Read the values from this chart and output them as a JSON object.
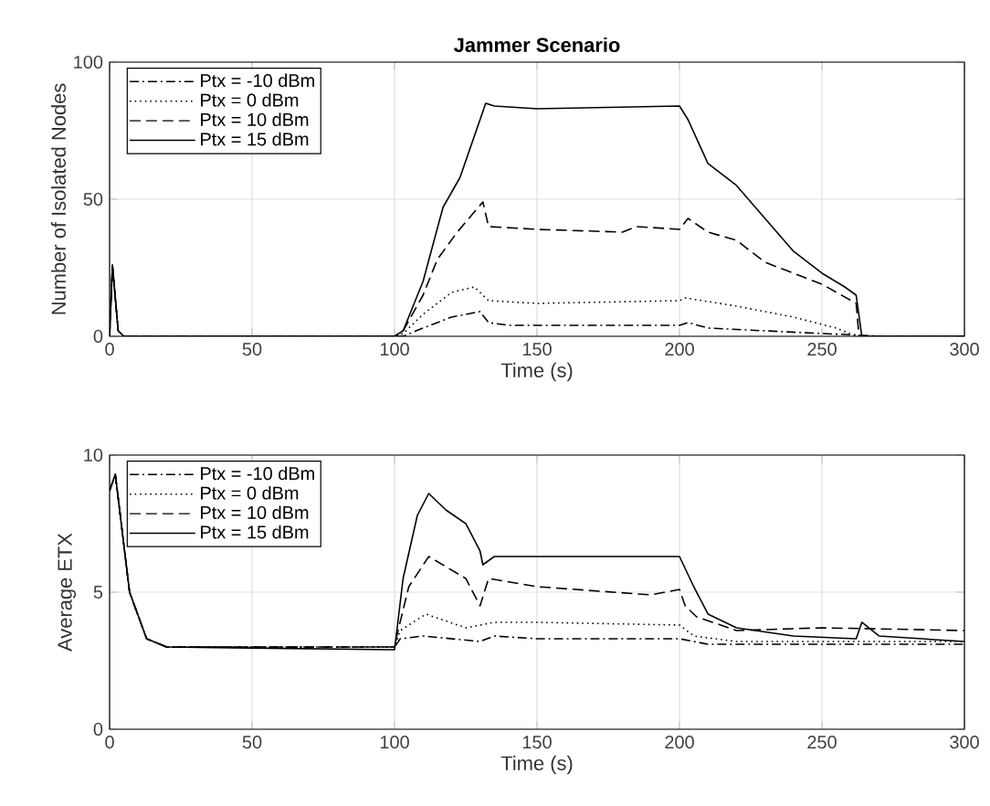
{
  "chart_data": [
    {
      "type": "line",
      "title": "Jammer Scenario",
      "xlabel": "Time (s)",
      "ylabel": "Number of Isolated Nodes",
      "xlim": [
        0,
        300
      ],
      "ylim": [
        0,
        100
      ],
      "xticks": [
        0,
        50,
        100,
        150,
        200,
        250,
        300
      ],
      "yticks": [
        0,
        50,
        100
      ],
      "grid": true,
      "legend": "top left",
      "series": [
        {
          "name": "Ptx = -10 dBm",
          "color": "#000000",
          "line_style": "dashdot",
          "x": [
            0,
            1,
            3,
            5,
            100,
            103,
            110,
            120,
            130,
            133,
            140,
            150,
            200,
            203,
            210,
            230,
            250,
            262,
            270,
            300
          ],
          "values": [
            0,
            26,
            2,
            0,
            0,
            0,
            3,
            7,
            9,
            5,
            4,
            4,
            4,
            5,
            3,
            2,
            1,
            0.5,
            0,
            0
          ]
        },
        {
          "name": "Ptx = 0 dBm",
          "color": "#000000",
          "line_style": "dotted",
          "x": [
            0,
            1,
            3,
            5,
            100,
            103,
            110,
            120,
            128,
            133,
            150,
            200,
            202,
            220,
            240,
            255,
            262,
            300
          ],
          "values": [
            0,
            26,
            2,
            0,
            0,
            1,
            8,
            16,
            18,
            13,
            12,
            13,
            14,
            11,
            7,
            3,
            0,
            0
          ]
        },
        {
          "name": "Ptx = 10 dBm",
          "color": "#000000",
          "line_style": "dashed",
          "x": [
            0,
            1,
            3,
            5,
            100,
            103,
            110,
            115,
            122,
            131,
            133,
            150,
            180,
            185,
            200,
            203,
            210,
            220,
            230,
            250,
            262,
            263,
            300
          ],
          "values": [
            0,
            26,
            2,
            0,
            0,
            2,
            15,
            28,
            38,
            49,
            40,
            39,
            38,
            40,
            39,
            43,
            38,
            35,
            27,
            19,
            12,
            0,
            0
          ]
        },
        {
          "name": "Ptx = 15 dBm",
          "color": "#000000",
          "line_style": "solid",
          "x": [
            0,
            1,
            3,
            5,
            100,
            103,
            110,
            117,
            123,
            132,
            135,
            150,
            200,
            203,
            210,
            220,
            230,
            240,
            250,
            258,
            262,
            264,
            300
          ],
          "values": [
            0,
            26,
            2,
            0,
            0,
            2,
            20,
            47,
            58,
            85,
            84,
            83,
            84,
            79,
            63,
            55,
            43,
            31,
            23,
            18,
            15,
            0,
            0
          ]
        }
      ]
    },
    {
      "type": "line",
      "xlabel": "Time (s)",
      "ylabel": "Average ETX",
      "xlim": [
        0,
        300
      ],
      "ylim": [
        0,
        10
      ],
      "xticks": [
        0,
        50,
        100,
        150,
        200,
        250,
        300
      ],
      "yticks": [
        0,
        5,
        10
      ],
      "grid": true,
      "legend": "top left",
      "series": [
        {
          "name": "Ptx = -10 dBm",
          "color": "#000000",
          "line_style": "dashdot",
          "x": [
            0,
            2,
            7,
            13,
            20,
            100,
            102,
            110,
            130,
            135,
            150,
            200,
            210,
            300
          ],
          "values": [
            8.7,
            9.3,
            5,
            3.3,
            3,
            3,
            3.3,
            3.4,
            3.2,
            3.4,
            3.3,
            3.3,
            3.1,
            3.1
          ]
        },
        {
          "name": "Ptx = 0 dBm",
          "color": "#000000",
          "line_style": "dotted",
          "x": [
            0,
            2,
            7,
            13,
            20,
            100,
            102,
            111,
            125,
            135,
            150,
            200,
            205,
            220,
            300
          ],
          "values": [
            8.7,
            9.3,
            5,
            3.3,
            3,
            3,
            3.6,
            4.2,
            3.7,
            3.9,
            3.9,
            3.8,
            3.4,
            3.2,
            3.2
          ]
        },
        {
          "name": "Ptx = 10 dBm",
          "color": "#000000",
          "line_style": "dashed",
          "x": [
            0,
            2,
            7,
            13,
            20,
            100,
            101,
            105,
            112,
            125,
            130,
            133,
            150,
            190,
            200,
            202,
            206,
            220,
            250,
            300
          ],
          "values": [
            8.7,
            9.3,
            5,
            3.3,
            3,
            3,
            3.5,
            5.2,
            6.3,
            5.5,
            4.5,
            5.5,
            5.2,
            4.9,
            5.1,
            4.5,
            4.1,
            3.6,
            3.7,
            3.6
          ]
        },
        {
          "name": "Ptx = 15 dBm",
          "color": "#000000",
          "line_style": "solid",
          "x": [
            0,
            2,
            7,
            13,
            20,
            100,
            103,
            108,
            112,
            118,
            125,
            130,
            131,
            135,
            180,
            200,
            205,
            210,
            220,
            240,
            262,
            264,
            270,
            300
          ],
          "values": [
            8.7,
            9.3,
            5,
            3.3,
            3,
            2.9,
            5.5,
            7.8,
            8.6,
            8.0,
            7.5,
            6.5,
            6.0,
            6.3,
            6.3,
            6.3,
            5.2,
            4.2,
            3.7,
            3.4,
            3.3,
            3.9,
            3.4,
            3.2
          ]
        }
      ]
    }
  ]
}
